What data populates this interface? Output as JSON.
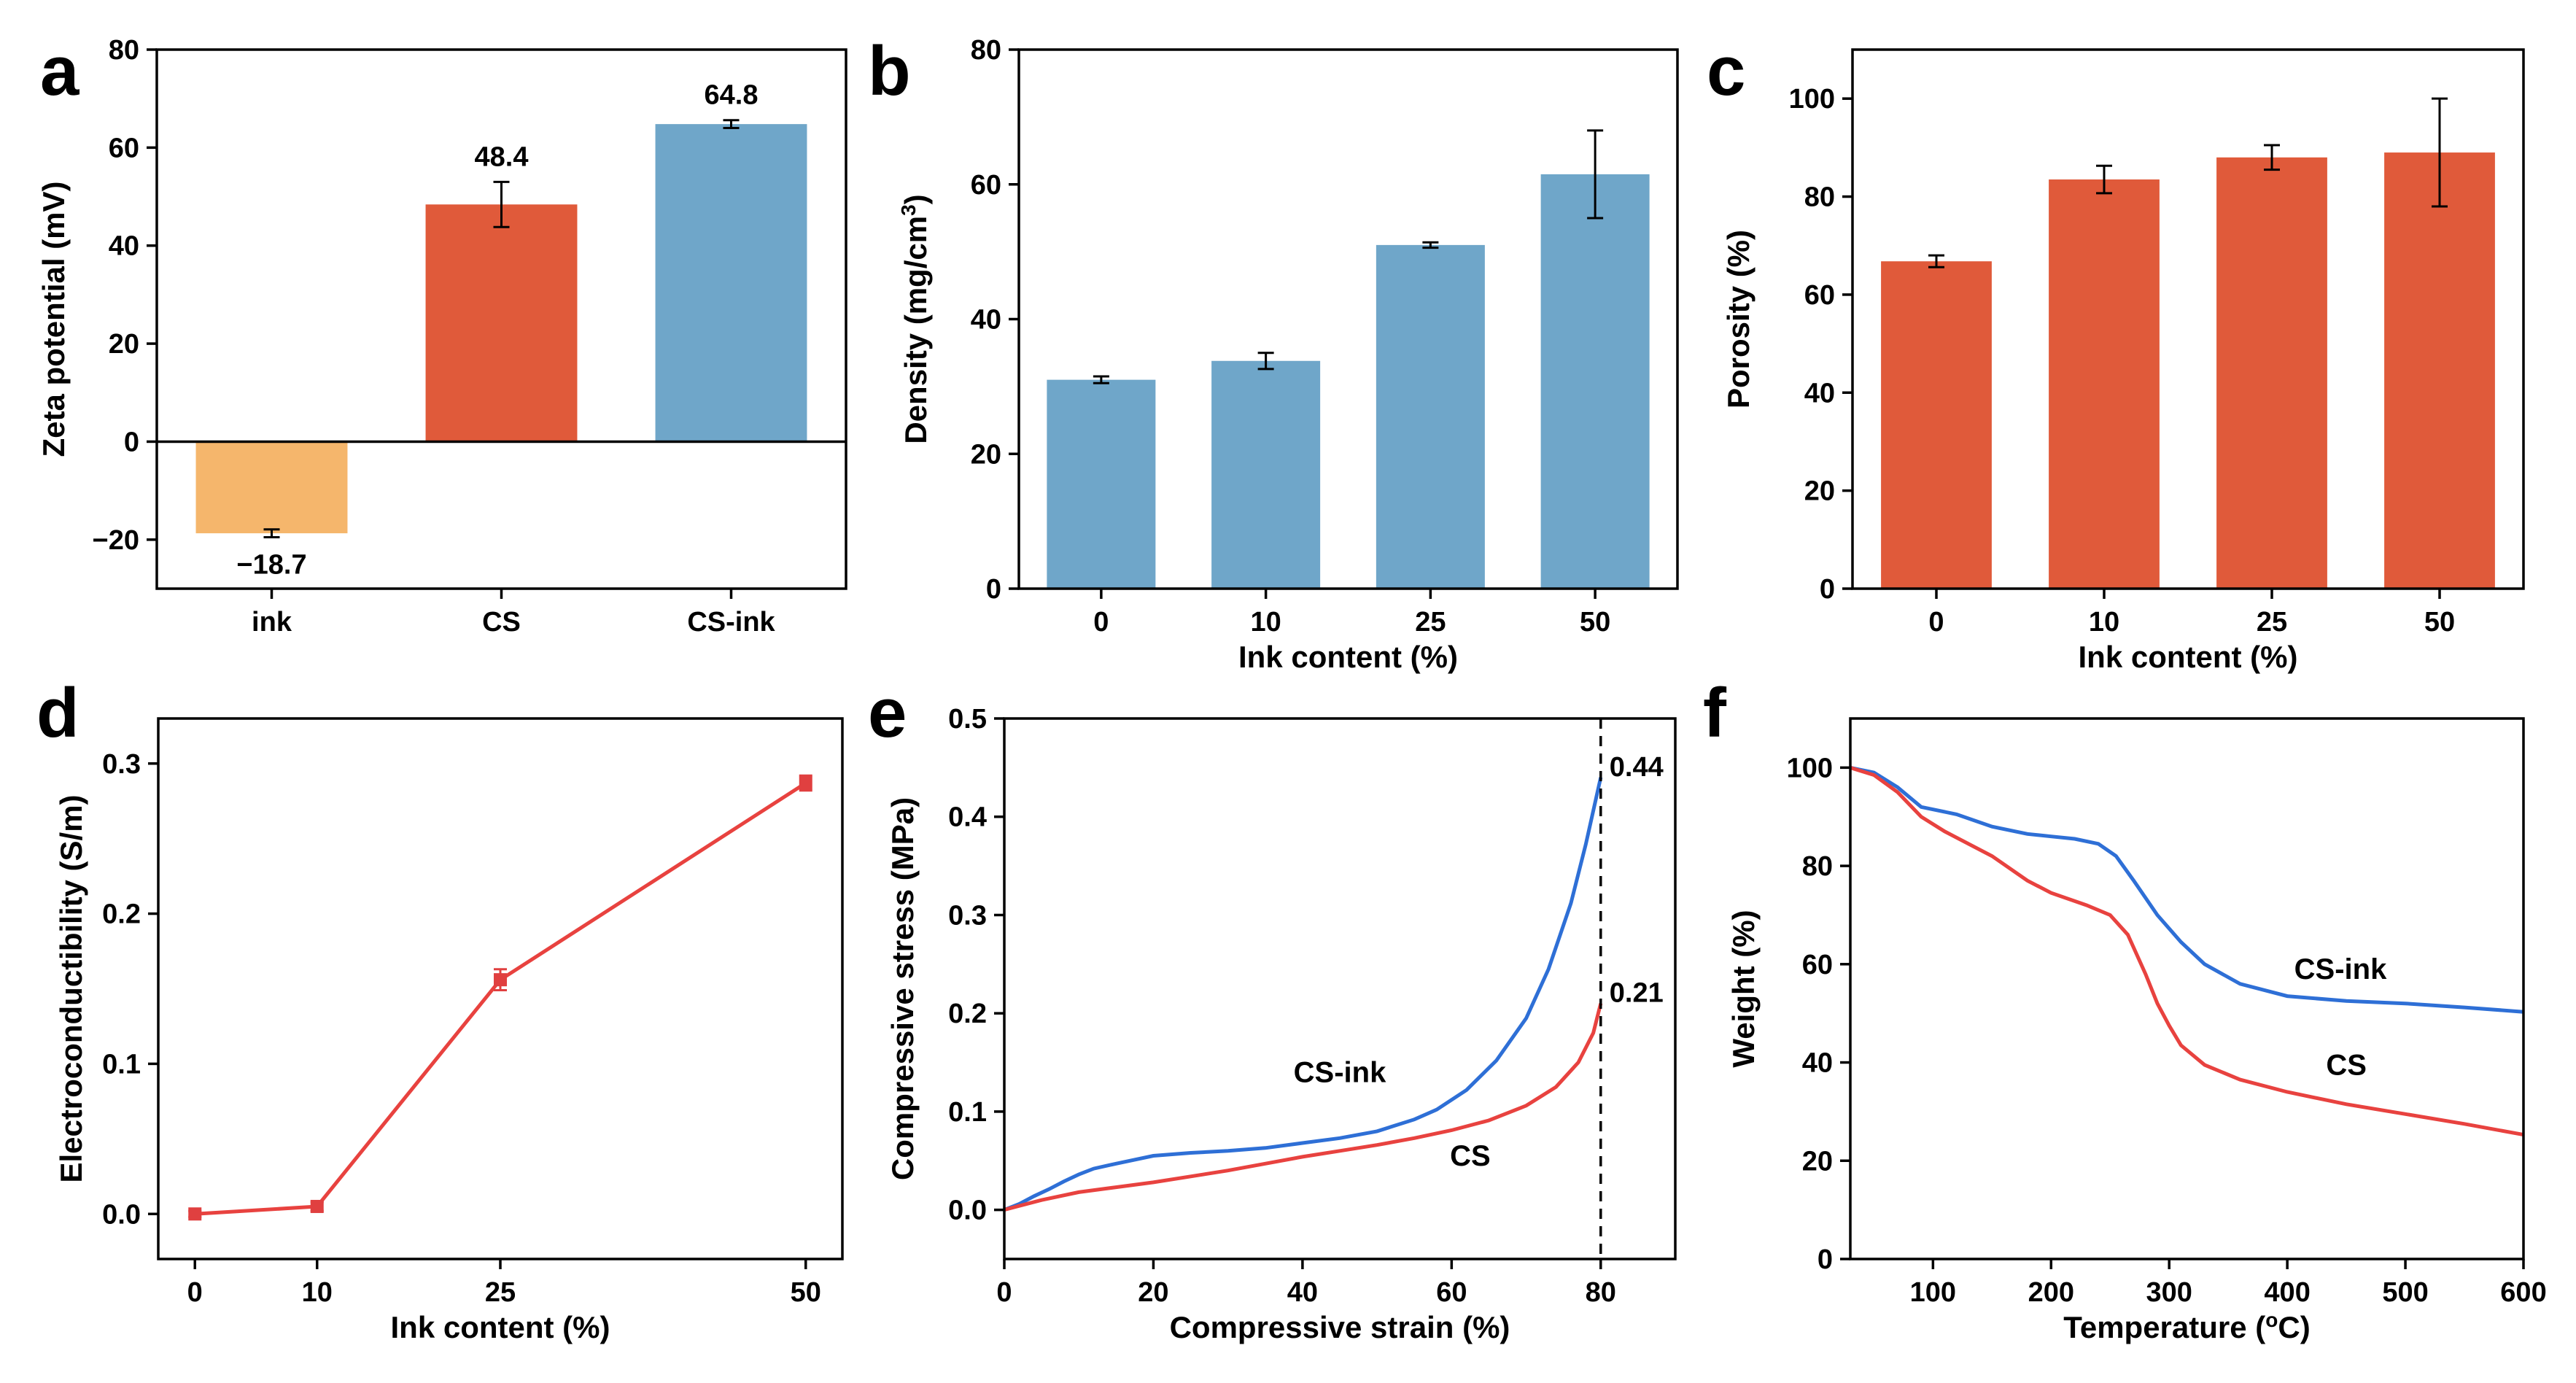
{
  "figure": {
    "colors": {
      "orange": "#f5b66c",
      "red": "#e05a3a",
      "blue": "#6fa6c9",
      "line_blue": "#2e6fd6",
      "line_red": "#e8423f",
      "marker_red": "#e04040"
    }
  },
  "chart_data": [
    {
      "panel": "a",
      "type": "bar",
      "categories": [
        "ink",
        "CS",
        "CS-ink"
      ],
      "values": [
        -18.7,
        48.4,
        64.8
      ],
      "errors": [
        0.8,
        4.6,
        0.8
      ],
      "value_labels": [
        "−18.7",
        "48.4",
        "64.8"
      ],
      "bar_colors": [
        "#f5b66c",
        "#e05a3a",
        "#6fa6c9"
      ],
      "xlabel": "",
      "ylabel": "Zeta potential (mV)",
      "ylim": [
        -30,
        80
      ],
      "yticks": [
        -20,
        0,
        20,
        40,
        60,
        80
      ],
      "ytick_labels": [
        "−20",
        "0",
        "20",
        "40",
        "60",
        "80"
      ]
    },
    {
      "panel": "b",
      "type": "bar",
      "categories": [
        "0",
        "10",
        "25",
        "50"
      ],
      "values": [
        31.0,
        33.8,
        51.0,
        61.5
      ],
      "errors": [
        0.5,
        1.2,
        0.4,
        6.5
      ],
      "bar_colors": [
        "#6fa6c9",
        "#6fa6c9",
        "#6fa6c9",
        "#6fa6c9"
      ],
      "xlabel": "Ink content (%)",
      "ylabel": "Density (mg/cm",
      "ylabel_sup": "3",
      "ylabel_end": ")",
      "ylim": [
        0,
        80
      ],
      "yticks": [
        0,
        20,
        40,
        60,
        80
      ],
      "ytick_labels": [
        "0",
        "20",
        "40",
        "60",
        "80"
      ]
    },
    {
      "panel": "c",
      "type": "bar",
      "categories": [
        "0",
        "10",
        "25",
        "50"
      ],
      "values": [
        66.8,
        83.5,
        88.0,
        89.0
      ],
      "errors": [
        1.2,
        2.8,
        2.5,
        11.0
      ],
      "bar_colors": [
        "#e05a3a",
        "#e05a3a",
        "#e05a3a",
        "#e05a3a"
      ],
      "xlabel": "Ink content (%)",
      "ylabel": "Porosity (%)",
      "ylim": [
        0,
        110
      ],
      "yticks": [
        0,
        20,
        40,
        60,
        80,
        100
      ],
      "ytick_labels": [
        "0",
        "20",
        "40",
        "60",
        "80",
        "100"
      ]
    },
    {
      "panel": "d",
      "type": "line",
      "x": [
        0,
        10,
        25,
        50
      ],
      "series": [
        {
          "name": "electroconductibility",
          "values": [
            0.0,
            0.005,
            0.156,
            0.287
          ],
          "errors": [
            0.002,
            0.003,
            0.007,
            0.005
          ]
        }
      ],
      "xlabel": "Ink content (%)",
      "ylabel": "Electroconductibility (S/m)",
      "xlim": [
        -3,
        53
      ],
      "ylim": [
        -0.03,
        0.33
      ],
      "xticks": [
        0,
        10,
        25,
        50
      ],
      "xtick_labels": [
        "0",
        "10",
        "25",
        "50"
      ],
      "yticks": [
        0.0,
        0.1,
        0.2,
        0.3
      ],
      "ytick_labels": [
        "0.0",
        "0.1",
        "0.2",
        "0.3"
      ]
    },
    {
      "panel": "e",
      "type": "line",
      "series": [
        {
          "name": "CS-ink",
          "x": [
            0,
            2,
            4,
            6,
            8,
            10,
            12,
            15,
            20,
            25,
            30,
            35,
            40,
            45,
            50,
            55,
            58,
            62,
            66,
            70,
            73,
            76,
            78,
            80
          ],
          "values": [
            0,
            0.006,
            0.014,
            0.021,
            0.029,
            0.036,
            0.042,
            0.047,
            0.055,
            0.058,
            0.06,
            0.063,
            0.068,
            0.073,
            0.08,
            0.092,
            0.102,
            0.122,
            0.152,
            0.195,
            0.245,
            0.312,
            0.372,
            0.44
          ]
        },
        {
          "name": "CS",
          "x": [
            0,
            2,
            5,
            10,
            15,
            20,
            25,
            30,
            35,
            40,
            45,
            50,
            55,
            60,
            65,
            70,
            74,
            77,
            79,
            80
          ],
          "values": [
            0,
            0.004,
            0.01,
            0.018,
            0.023,
            0.028,
            0.034,
            0.04,
            0.047,
            0.054,
            0.06,
            0.066,
            0.073,
            0.081,
            0.091,
            0.106,
            0.125,
            0.15,
            0.18,
            0.21
          ]
        }
      ],
      "series_labels": [
        "CS-ink",
        "CS"
      ],
      "end_labels": [
        "0.44",
        "0.21"
      ],
      "vline_x": 80,
      "xlabel": "Compressive strain (%)",
      "ylabel": "Compressive stress (MPa)",
      "xlim": [
        0,
        90
      ],
      "ylim": [
        -0.05,
        0.5
      ],
      "xticks": [
        0,
        20,
        40,
        60,
        80
      ],
      "xtick_labels": [
        "0",
        "20",
        "40",
        "60",
        "80"
      ],
      "yticks": [
        0.0,
        0.1,
        0.2,
        0.3,
        0.4,
        0.5
      ],
      "ytick_labels": [
        "0.0",
        "0.1",
        "0.2",
        "0.3",
        "0.4",
        "0.5"
      ]
    },
    {
      "panel": "f",
      "type": "line",
      "series": [
        {
          "name": "CS-ink",
          "x": [
            30,
            50,
            70,
            90,
            120,
            150,
            180,
            200,
            220,
            240,
            255,
            270,
            290,
            310,
            330,
            360,
            400,
            450,
            500,
            550,
            600
          ],
          "values": [
            100,
            99,
            96,
            92,
            90.5,
            88,
            86.5,
            86,
            85.5,
            84.5,
            82,
            77,
            70,
            64.5,
            60,
            56,
            53.5,
            52.5,
            52,
            51.2,
            50.3
          ]
        },
        {
          "name": "CS",
          "x": [
            30,
            50,
            70,
            90,
            110,
            150,
            180,
            200,
            230,
            250,
            265,
            280,
            290,
            300,
            310,
            330,
            360,
            400,
            450,
            500,
            550,
            600
          ],
          "values": [
            100,
            98.5,
            95,
            90,
            87,
            82,
            77,
            74.5,
            72,
            70,
            66,
            58,
            52,
            47.5,
            43.5,
            39.5,
            36.5,
            34,
            31.5,
            29.5,
            27.5,
            25.3
          ]
        }
      ],
      "series_labels": [
        "CS-ink",
        "CS"
      ],
      "xlabel": "Temperature (",
      "xlabel_sup": "o",
      "xlabel_end": "C)",
      "ylabel": "Weight (%)",
      "xlim": [
        30,
        600
      ],
      "ylim": [
        0,
        110
      ],
      "xticks": [
        100,
        200,
        300,
        400,
        500,
        600
      ],
      "xtick_labels": [
        "100",
        "200",
        "300",
        "400",
        "500",
        "600"
      ],
      "yticks": [
        0,
        20,
        40,
        60,
        80,
        100
      ],
      "ytick_labels": [
        "0",
        "20",
        "40",
        "60",
        "80",
        "100"
      ]
    }
  ]
}
